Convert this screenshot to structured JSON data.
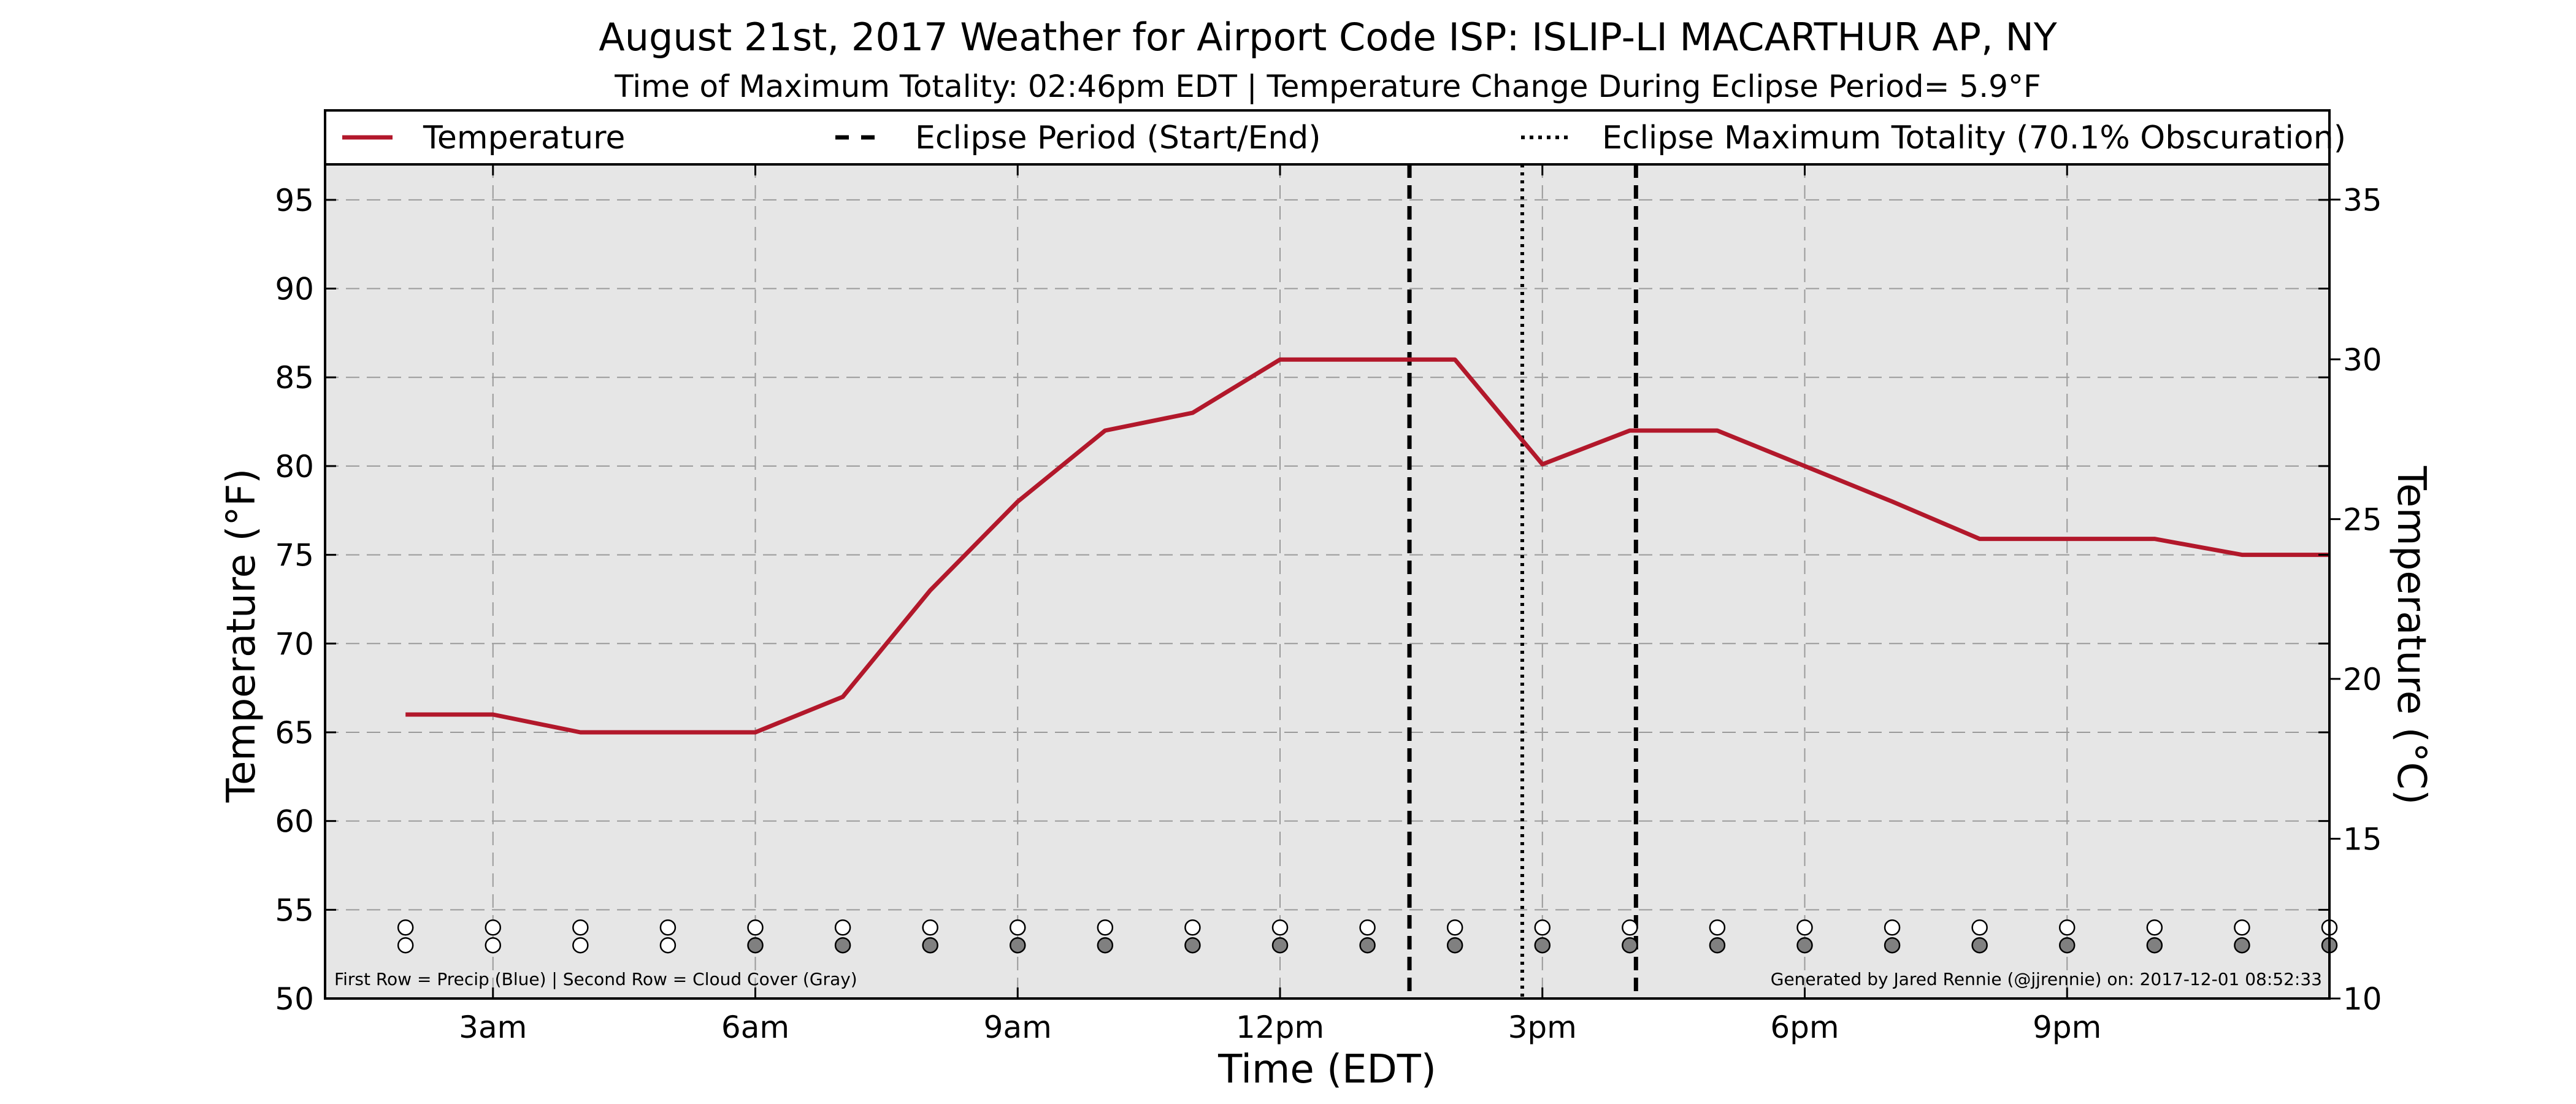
{
  "chart_data": {
    "type": "line",
    "title": "August 21st, 2017 Weather for Airport Code ISP: ISLIP-LI MACARTHUR AP, NY",
    "subtitle": "Time of Maximum Totality: 02:46pm EDT | Temperature Change During Eclipse Period= 5.9°F",
    "xlabel": "Time (EDT)",
    "ylabel": "Temperature (°F)",
    "ylabel_right": "Temperature (°C)",
    "x_unit": "hour of day (EDT)",
    "xlim": [
      1.08,
      24.0
    ],
    "ylim": [
      50,
      97
    ],
    "ylim_right": [
      10,
      36.1
    ],
    "x_ticks": [
      {
        "x": 3,
        "label": "3am"
      },
      {
        "x": 6,
        "label": "6am"
      },
      {
        "x": 9,
        "label": "9am"
      },
      {
        "x": 12,
        "label": "12pm"
      },
      {
        "x": 15,
        "label": "3pm"
      },
      {
        "x": 18,
        "label": "6pm"
      },
      {
        "x": 21,
        "label": "9pm"
      }
    ],
    "y_ticks": [
      50,
      55,
      60,
      65,
      70,
      75,
      80,
      85,
      90,
      95
    ],
    "y_ticks_right": [
      10,
      15,
      20,
      25,
      30,
      35
    ],
    "grid": true,
    "background": "#e6e6e6",
    "legend_position": "top",
    "series": [
      {
        "name": "Temperature",
        "color": "#b2182b",
        "x": [
          2,
          3,
          4,
          5,
          6,
          7,
          8,
          9,
          10,
          11,
          12,
          13,
          14,
          15,
          16,
          17,
          18,
          19,
          20,
          21,
          22,
          23,
          24
        ],
        "values": [
          66,
          66,
          65,
          65,
          65,
          67,
          73,
          78,
          82,
          83,
          86,
          86,
          86,
          80.1,
          82,
          82,
          80,
          78,
          75.9,
          75.9,
          75.9,
          75,
          75
        ]
      }
    ],
    "eclipse": {
      "start_label": "Eclipse Period (Start/End)",
      "start": 13.48,
      "end": 16.07,
      "max_label": "Eclipse Maximum Totality (70.1% Obscuration)",
      "max": 14.77
    },
    "marker_rows": {
      "x": [
        2,
        3,
        4,
        5,
        6,
        7,
        8,
        9,
        10,
        11,
        12,
        13,
        14,
        15,
        16,
        17,
        18,
        19,
        20,
        21,
        22,
        23,
        24
      ],
      "precip_y": 54,
      "cloud_y": 53,
      "precip": [
        0,
        0,
        0,
        0,
        0,
        0,
        0,
        0,
        0,
        0,
        0,
        0,
        0,
        0,
        0,
        0,
        0,
        0,
        0,
        0,
        0,
        0,
        0
      ],
      "cloud_cover": [
        0,
        0,
        0,
        0,
        1,
        1,
        1,
        1,
        1,
        1,
        1,
        1,
        1,
        1,
        1,
        1,
        1,
        1,
        1,
        1,
        1,
        1,
        1
      ],
      "empty_color": "#ffffff",
      "precip_color": "#2166ac",
      "cloud_color": "#808080"
    },
    "note_left": "First Row = Precip (Blue) | Second Row = Cloud Cover (Gray)",
    "note_right": "Generated by Jared Rennie (@jjrennie) on: 2017-12-01 08:52:33"
  }
}
